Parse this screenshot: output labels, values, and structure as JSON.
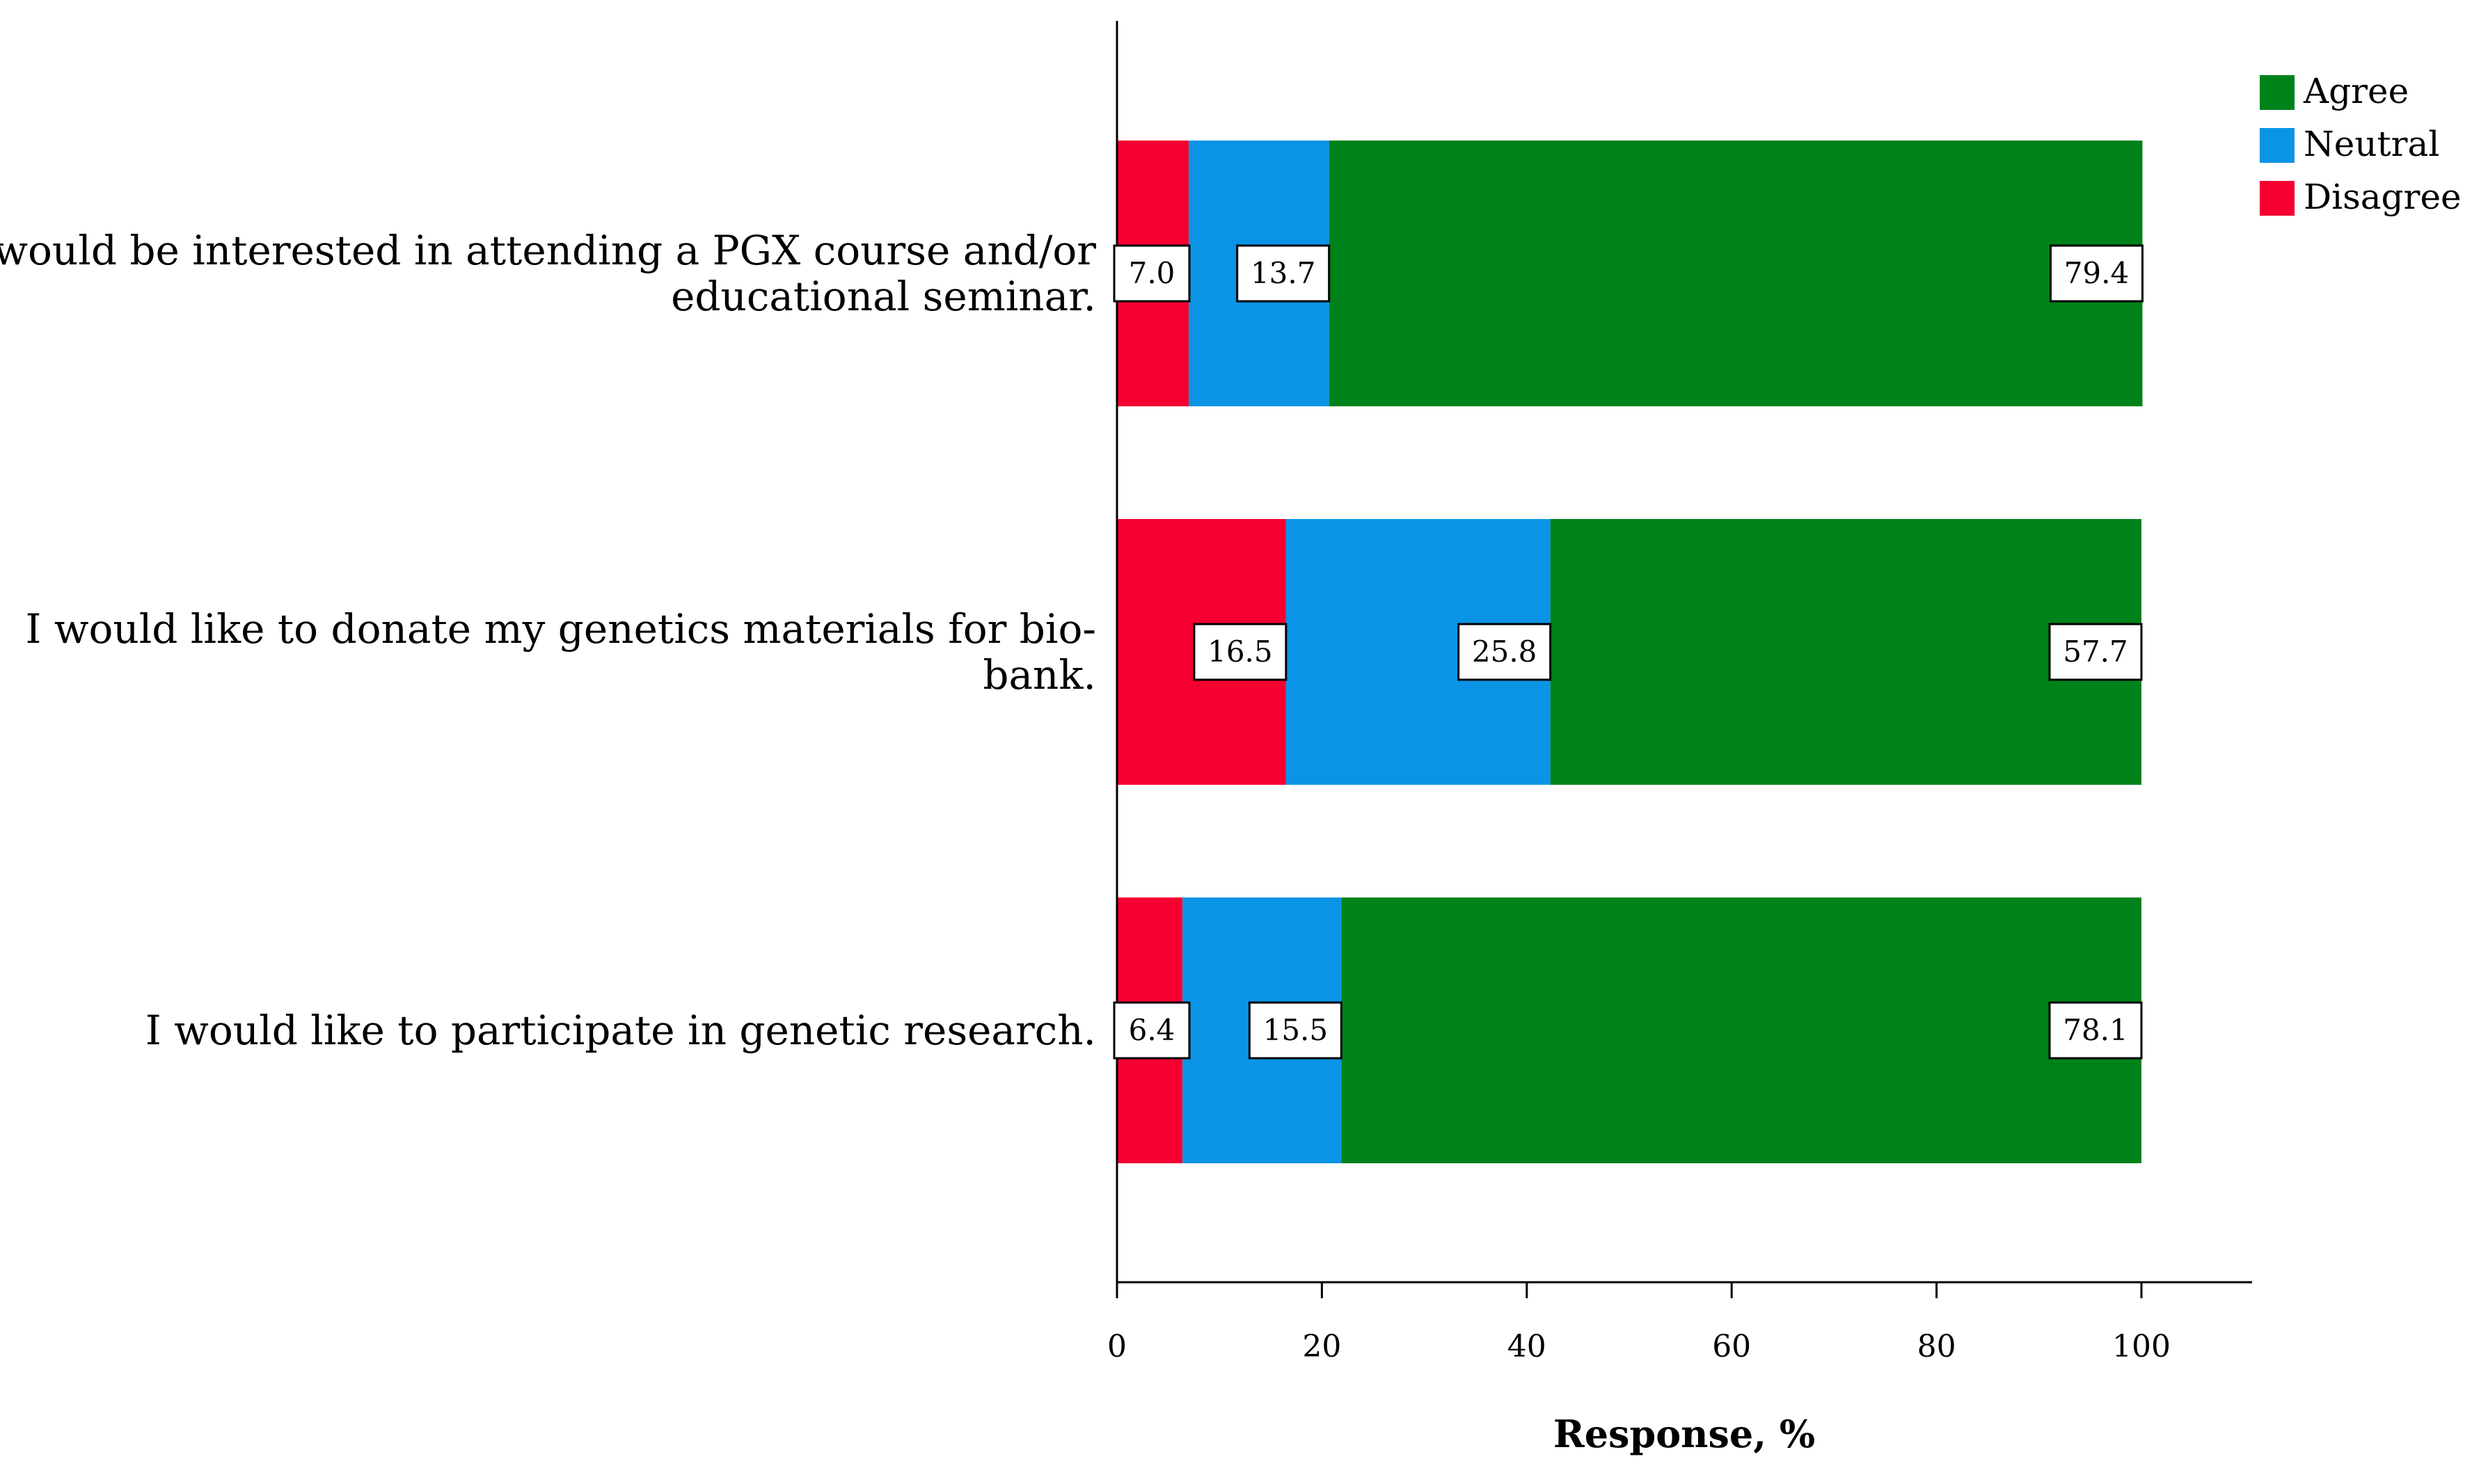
{
  "chart_data": {
    "type": "bar",
    "orientation": "horizontal",
    "stacked": true,
    "categories": [
      [
        "I would be interested in attending a PGX course and/or",
        "educational seminar."
      ],
      [
        "I would like to donate my genetics materials for bio-",
        "bank."
      ],
      [
        "I would like to participate in genetic research."
      ]
    ],
    "series": [
      {
        "name": "Disagree",
        "color": "#f50030",
        "values": [
          7.0,
          16.5,
          6.4
        ],
        "labels": [
          "7.0",
          "16.5",
          "6.4"
        ]
      },
      {
        "name": "Neutral",
        "color": "#0a94e6",
        "values": [
          13.7,
          25.8,
          15.5
        ],
        "labels": [
          "13.7",
          "25.8",
          "15.5"
        ]
      },
      {
        "name": "Agree",
        "color": "#00821a",
        "values": [
          79.4,
          57.7,
          78.1
        ],
        "labels": [
          "79.4",
          "57.7",
          "78.1"
        ]
      }
    ],
    "legend_order": [
      "Agree",
      "Neutral",
      "Disagree"
    ],
    "legend_position": "top-right",
    "xlabel": "Response, %",
    "xlim": [
      0,
      111
    ],
    "xticks": [
      0,
      20,
      40,
      60,
      80,
      100
    ],
    "grid": false
  }
}
